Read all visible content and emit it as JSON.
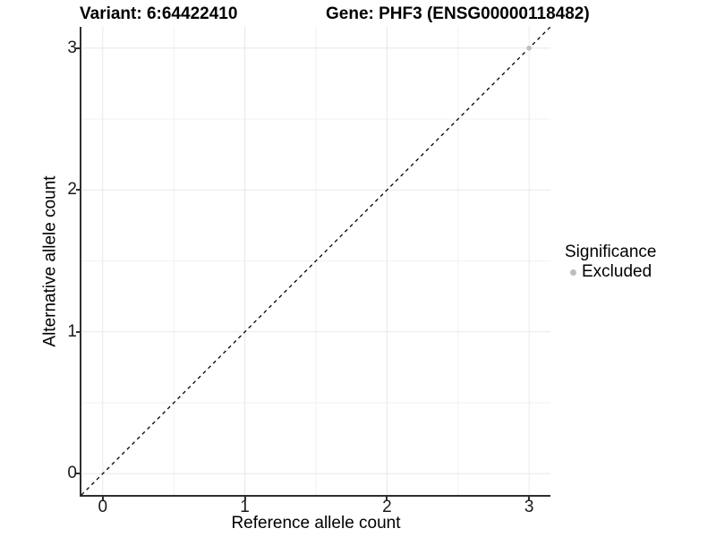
{
  "chart_data": {
    "type": "scatter",
    "title_left": "Variant: 6:64422410",
    "title_right": "Gene: PHF3 (ENSG00000118482)",
    "xlabel": "Reference allele count",
    "ylabel": "Alternative allele count",
    "x_ticks": [
      0,
      1,
      2,
      3
    ],
    "y_ticks": [
      0,
      1,
      2,
      3
    ],
    "x_minor_ticks": [
      0.5,
      1.5,
      2.5
    ],
    "y_minor_ticks": [
      0.5,
      1.5,
      2.5
    ],
    "xlim": [
      -0.15,
      3.15
    ],
    "ylim": [
      -0.15,
      3.15
    ],
    "grid": true,
    "identity_line": {
      "slope": 1,
      "intercept": 0,
      "style": "dashed",
      "color": "#000000"
    },
    "series": [
      {
        "name": "Excluded",
        "color": "#bebebe",
        "points": [
          {
            "x": 3,
            "y": 3
          }
        ]
      }
    ],
    "legend": {
      "title": "Significance",
      "position": "right",
      "entries": [
        {
          "label": "Excluded",
          "color": "#bebebe"
        }
      ]
    },
    "colors": {
      "background": "#ffffff",
      "grid_major": "#e8e8e8",
      "grid_minor": "#f2f2f2",
      "axis_line": "#2f2f2f",
      "tick_text": "#1a1a1a"
    }
  }
}
